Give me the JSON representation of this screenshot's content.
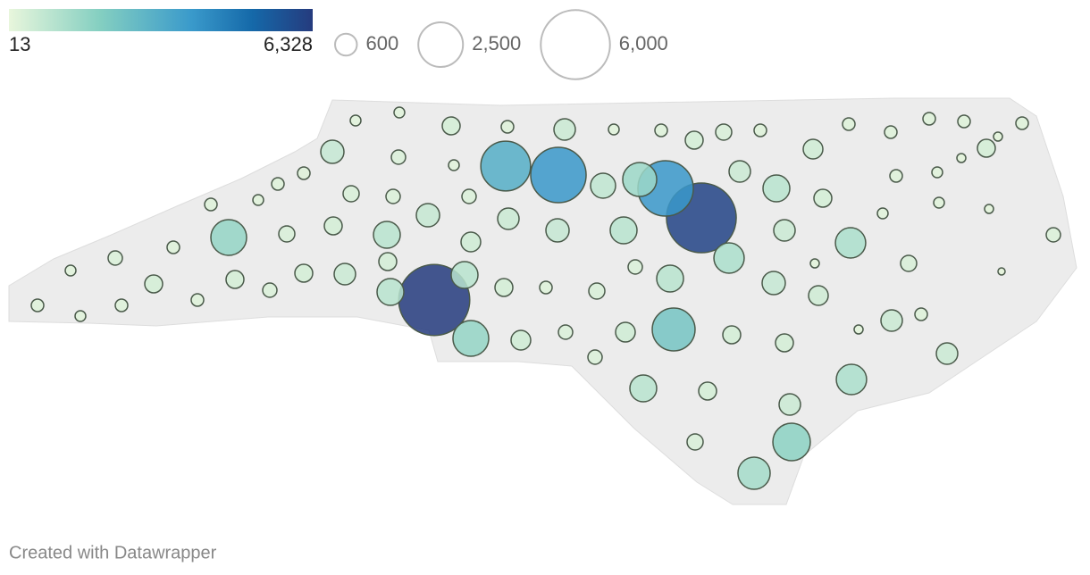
{
  "legend": {
    "color": {
      "ticks": [
        13,
        {
          "value": 6328,
          "label": "6,328"
        }
      ]
    },
    "size": {
      "ticks": [
        600,
        {
          "value": 2500,
          "label": "2,500"
        },
        {
          "value": 6000,
          "label": "6,000"
        }
      ]
    }
  },
  "bubbles": {
    "values": [
      6328,
      6100,
      3850,
      3100,
      3850,
      1450,
      2300,
      1600,
      1760,
      1600,
      900,
      1150,
      1300,
      1150,
      1150,
      900,
      900,
      680,
      900,
      900,
      900,
      900,
      144,
      144,
      400,
      196,
      576,
      144,
      196,
      400,
      324,
      196,
      484,
      196,
      196,
      196,
      196,
      400,
      100,
      196,
      100,
      144,
      196,
      144,
      100,
      144,
      400,
      576,
      676,
      256,
      144,
      196,
      196,
      144,
      196,
      324,
      256,
      256,
      576,
      784,
      676,
      484,
      400,
      324,
      196,
      256,
      144,
      196,
      144,
      196,
      400,
      196,
      400,
      256,
      400,
      576,
      400,
      400,
      196,
      324,
      256,
      576,
      100,
      676,
      484,
      324,
      256,
      64,
      196,
      576,
      100,
      400,
      400,
      484,
      256,
      484,
      256,
      400,
      576,
      576,
      324
    ]
  },
  "footer": "Created with Datawrapper"
}
